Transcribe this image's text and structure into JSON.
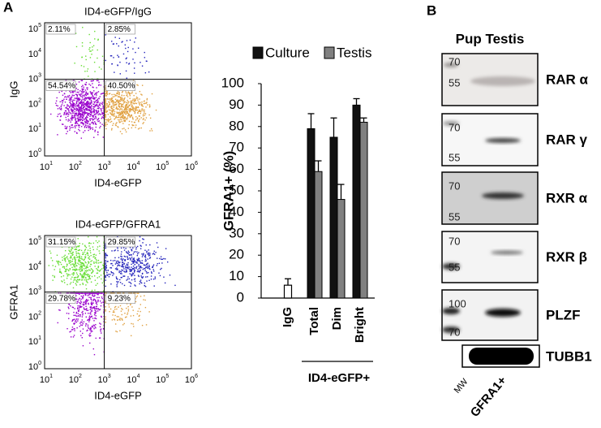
{
  "panel_a": {
    "label": "A",
    "flow_tick_base": "10",
    "flow_x_exponents": [
      "1",
      "2",
      "3",
      "4",
      "5",
      "6"
    ],
    "flow_y_exponents": [
      "0",
      "1",
      "2",
      "3",
      "4",
      "5"
    ],
    "flow_plots": [
      {
        "title": "ID4-eGFP/IgG",
        "y_label": "IgG",
        "x_label": "ID4-eGFP",
        "quadrants": [
          "2.11%",
          "2.85%",
          "54.54%",
          "40.50%"
        ]
      },
      {
        "title": "ID4-eGFP/GFRA1",
        "y_label": "GFRA1",
        "x_label": "ID4-eGFP",
        "quadrants": [
          "31.15%",
          "29.85%",
          "29.78%",
          "9.23%"
        ]
      }
    ]
  },
  "chart_data": {
    "type": "bar",
    "y_label": "GFRA1+ (%)",
    "categories": [
      "IgG",
      "Total",
      "Dim",
      "Bright"
    ],
    "group_label": "ID4-eGFP+",
    "control": {
      "values": [
        6
      ],
      "errors": [
        3
      ],
      "color": "#ffffff"
    },
    "series": [
      {
        "name": "Culture",
        "color": "#111111",
        "values": [
          null,
          79,
          75,
          90
        ],
        "errors": [
          null,
          7,
          9,
          3
        ]
      },
      {
        "name": "Testis",
        "color": "#808080",
        "values": [
          null,
          59,
          46,
          82
        ],
        "errors": [
          null,
          5,
          7,
          2
        ]
      }
    ],
    "ylim": [
      0,
      100
    ],
    "yticks": [
      0,
      10,
      20,
      30,
      40,
      50,
      60,
      70,
      80,
      90,
      100
    ]
  },
  "panel_b": {
    "label": "B",
    "title": "Pup Testis",
    "blots": [
      {
        "label": "RAR α",
        "markers": [
          "70",
          "55"
        ]
      },
      {
        "label": "RAR γ",
        "markers": [
          "70",
          "55"
        ]
      },
      {
        "label": "RXR α",
        "markers": [
          "70",
          "55"
        ]
      },
      {
        "label": "RXR β",
        "markers": [
          "70",
          "55"
        ]
      },
      {
        "label": "PLZF",
        "markers": [
          "100",
          "70"
        ]
      }
    ],
    "loading_label": "TUBB1",
    "lanes": [
      "MW",
      "GFRA1+"
    ]
  }
}
